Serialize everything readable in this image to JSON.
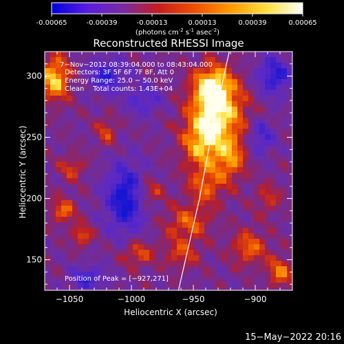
{
  "chart_data": {
    "type": "heatmap",
    "title": "Reconstructed RHESSI Image",
    "colorbar": {
      "ticks": [
        "-0.00065",
        "-0.00039",
        "-0.00013",
        "0.00013",
        "0.00039",
        "0.00065"
      ],
      "range": [
        -0.00065,
        0.00065
      ],
      "unit_label_parts": [
        "(photons cm",
        "-2",
        " s",
        "-1",
        " asec",
        "-2",
        ")"
      ],
      "colors": [
        "#0000e0",
        "#5a1ee0",
        "#7a2aa0",
        "#c81e1e",
        "#f05000",
        "#ff9a00",
        "#ffe040",
        "#ffffff"
      ]
    },
    "xlabel": "Heliocentric X (arcsec)",
    "ylabel": "Heliocentric Y (arcsec)",
    "xlim": [
      -1070,
      -870
    ],
    "ylim": [
      125,
      320
    ],
    "x_ticks": [
      {
        "value": -1050,
        "label": "−1050"
      },
      {
        "value": -1000,
        "label": "−1000"
      },
      {
        "value": -950,
        "label": "−950"
      },
      {
        "value": -900,
        "label": "−900"
      }
    ],
    "y_ticks": [
      {
        "value": 150,
        "label": "150"
      },
      {
        "value": 200,
        "label": "200"
      },
      {
        "value": 250,
        "label": "250"
      },
      {
        "value": 300,
        "label": "300"
      }
    ],
    "info_lines": [
      "7−Nov−2012 08:39:04.000 to 08:43:04.000",
      "Detectors: 3F 5F 6F 7F 8F, Att 0",
      "Energy Range: 25.0 − 50.0 keV",
      "Clean    Total counts: 1.43E+04"
    ],
    "peak_label": "Position of Peak = [−927,271]",
    "peak": {
      "x": -927,
      "y": 271
    },
    "limb_curve": [
      {
        "x": -962,
        "y": 125
      },
      {
        "x": -945,
        "y": 200
      },
      {
        "x": -934,
        "y": 260
      },
      {
        "x": -921,
        "y": 320
      }
    ],
    "bright_sources": [
      {
        "x": -930,
        "y": 272,
        "intensity": 1.0,
        "rx": 22,
        "ry": 28
      },
      {
        "x": -935,
        "y": 292,
        "intensity": 0.8,
        "rx": 14,
        "ry": 16
      },
      {
        "x": -943,
        "y": 245,
        "intensity": 0.75,
        "rx": 16,
        "ry": 22
      },
      {
        "x": -920,
        "y": 232,
        "intensity": 0.65,
        "rx": 12,
        "ry": 18
      },
      {
        "x": -940,
        "y": 210,
        "intensity": 0.55,
        "rx": 14,
        "ry": 16
      },
      {
        "x": -955,
        "y": 180,
        "intensity": 0.55,
        "rx": 18,
        "ry": 14
      },
      {
        "x": -960,
        "y": 155,
        "intensity": 0.45,
        "rx": 14,
        "ry": 12
      },
      {
        "x": -1062,
        "y": 298,
        "intensity": 0.95,
        "rx": 12,
        "ry": 18
      },
      {
        "x": -1055,
        "y": 190,
        "intensity": 0.6,
        "rx": 10,
        "ry": 10
      },
      {
        "x": -1040,
        "y": 170,
        "intensity": 0.6,
        "rx": 8,
        "ry": 8
      },
      {
        "x": -1048,
        "y": 225,
        "intensity": 0.45,
        "rx": 10,
        "ry": 10
      },
      {
        "x": -1020,
        "y": 255,
        "intensity": 0.45,
        "rx": 8,
        "ry": 12
      },
      {
        "x": -995,
        "y": 155,
        "intensity": 0.55,
        "rx": 12,
        "ry": 10
      },
      {
        "x": -985,
        "y": 205,
        "intensity": 0.5,
        "rx": 10,
        "ry": 10
      },
      {
        "x": -905,
        "y": 160,
        "intensity": 0.6,
        "rx": 14,
        "ry": 14
      },
      {
        "x": -880,
        "y": 140,
        "intensity": 0.65,
        "rx": 10,
        "ry": 12
      },
      {
        "x": -890,
        "y": 200,
        "intensity": 0.4,
        "rx": 10,
        "ry": 12
      }
    ],
    "dark_sources": [
      {
        "x": -1005,
        "y": 200,
        "intensity": -0.9,
        "rx": 16,
        "ry": 28
      },
      {
        "x": -1020,
        "y": 300,
        "intensity": -0.7,
        "rx": 14,
        "ry": 14
      },
      {
        "x": -1035,
        "y": 135,
        "intensity": -0.6,
        "rx": 14,
        "ry": 10
      },
      {
        "x": -885,
        "y": 300,
        "intensity": -0.75,
        "rx": 14,
        "ry": 16
      },
      {
        "x": -895,
        "y": 250,
        "intensity": -0.6,
        "rx": 10,
        "ry": 14
      },
      {
        "x": -990,
        "y": 280,
        "intensity": -0.5,
        "rx": 14,
        "ry": 12
      }
    ]
  },
  "footer": {
    "timestamp": "15−May−2022 20:16"
  }
}
